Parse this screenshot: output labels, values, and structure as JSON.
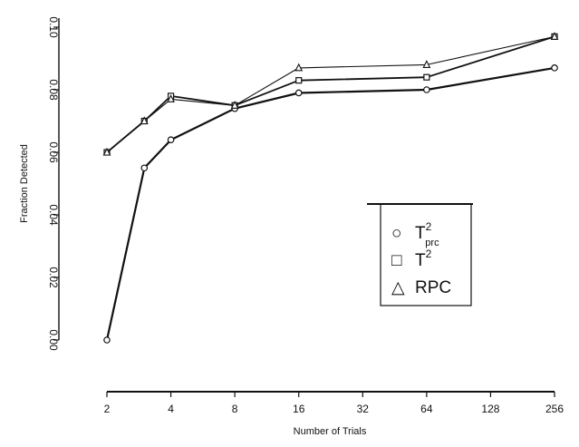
{
  "chart_data": {
    "type": "line",
    "xlabel": "Number of Trials",
    "ylabel": "Fraction Detected",
    "x_scale": "log2",
    "x_ticks": [
      2,
      4,
      8,
      16,
      32,
      64,
      128,
      256
    ],
    "x_tick_labels": [
      "2",
      "4",
      "8",
      "16",
      "32",
      "64",
      "128",
      "256"
    ],
    "ylim": [
      0.0,
      0.1
    ],
    "y_ticks": [
      0.0,
      0.02,
      0.04,
      0.06,
      0.08,
      0.1
    ],
    "y_tick_labels": [
      "0.00",
      "0.02",
      "0.04",
      "0.06",
      "0.08",
      "0.10"
    ],
    "grid": false,
    "legend_position": "right-middle",
    "series": [
      {
        "name": "T²_{prc}",
        "marker": "circle",
        "x": [
          2,
          3,
          4,
          8,
          16,
          64,
          256
        ],
        "y": [
          0.0,
          0.055,
          0.064,
          0.074,
          0.079,
          0.08,
          0.087
        ]
      },
      {
        "name": "T²",
        "marker": "square",
        "x": [
          2,
          3,
          4,
          8,
          16,
          64,
          256
        ],
        "y": [
          0.06,
          0.07,
          0.078,
          0.075,
          0.083,
          0.084,
          0.097
        ]
      },
      {
        "name": "RPC",
        "marker": "triangle",
        "x": [
          2,
          3,
          4,
          8,
          16,
          64,
          256
        ],
        "y": [
          0.06,
          0.07,
          0.077,
          0.075,
          0.087,
          0.088,
          0.097
        ]
      }
    ]
  },
  "legend": {
    "items": [
      {
        "symbol": "○",
        "base": "T",
        "sup": "2",
        "sub": "prc"
      },
      {
        "symbol": "□",
        "base": "T",
        "sup": "2",
        "sub": ""
      },
      {
        "symbol": "△",
        "base": "RPC",
        "sup": "",
        "sub": ""
      }
    ]
  }
}
